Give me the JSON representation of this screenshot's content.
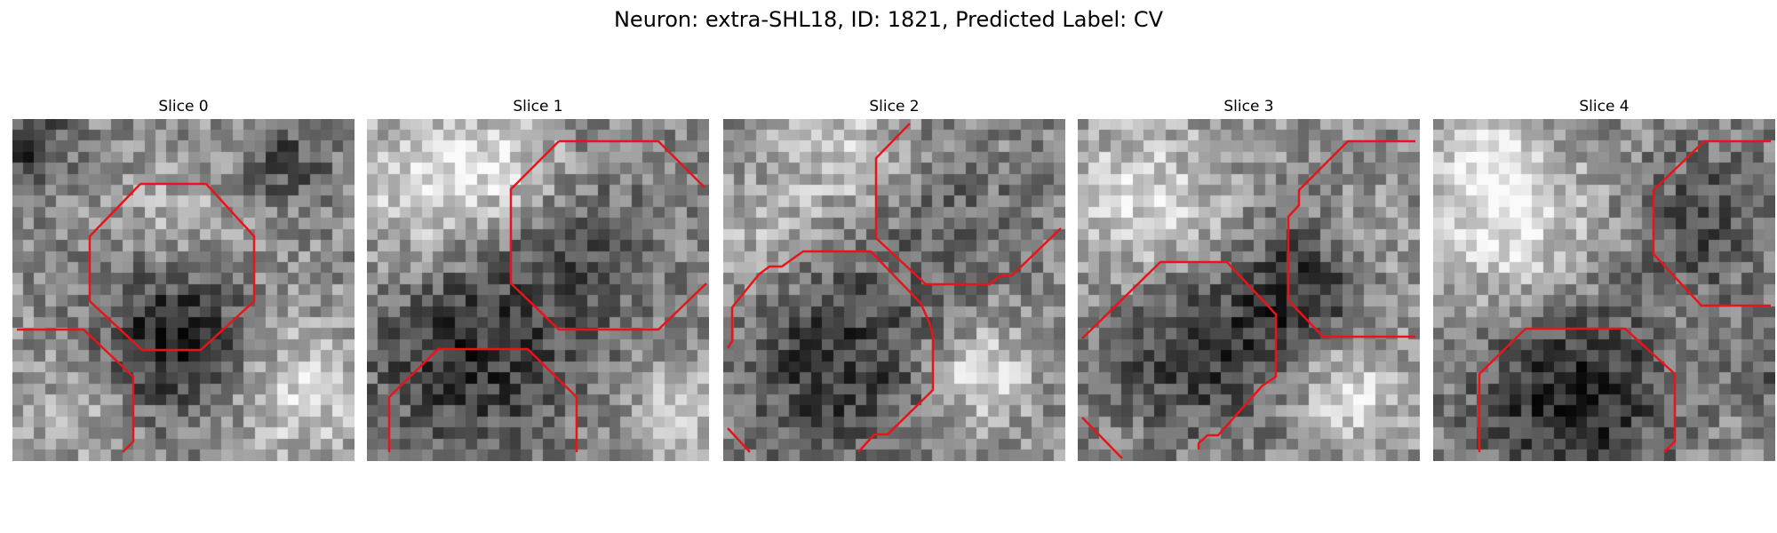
{
  "figure": {
    "title": "Neuron: extra-SHL18, ID: 1821, Predicted Label: CV"
  },
  "colors": {
    "contour": "#e8141a",
    "background": "#ffffff"
  },
  "panels": [
    {
      "title": "Slice 0",
      "image": "grayscale-microscopy-patch",
      "overlay": "red-segmentation-contours"
    },
    {
      "title": "Slice 1",
      "image": "grayscale-microscopy-patch",
      "overlay": "red-segmentation-contours"
    },
    {
      "title": "Slice 2",
      "image": "grayscale-microscopy-patch",
      "overlay": "red-segmentation-contours"
    },
    {
      "title": "Slice 3",
      "image": "grayscale-microscopy-patch",
      "overlay": "red-segmentation-contours"
    },
    {
      "title": "Slice 4",
      "image": "grayscale-microscopy-patch",
      "overlay": "red-segmentation-contours"
    }
  ]
}
